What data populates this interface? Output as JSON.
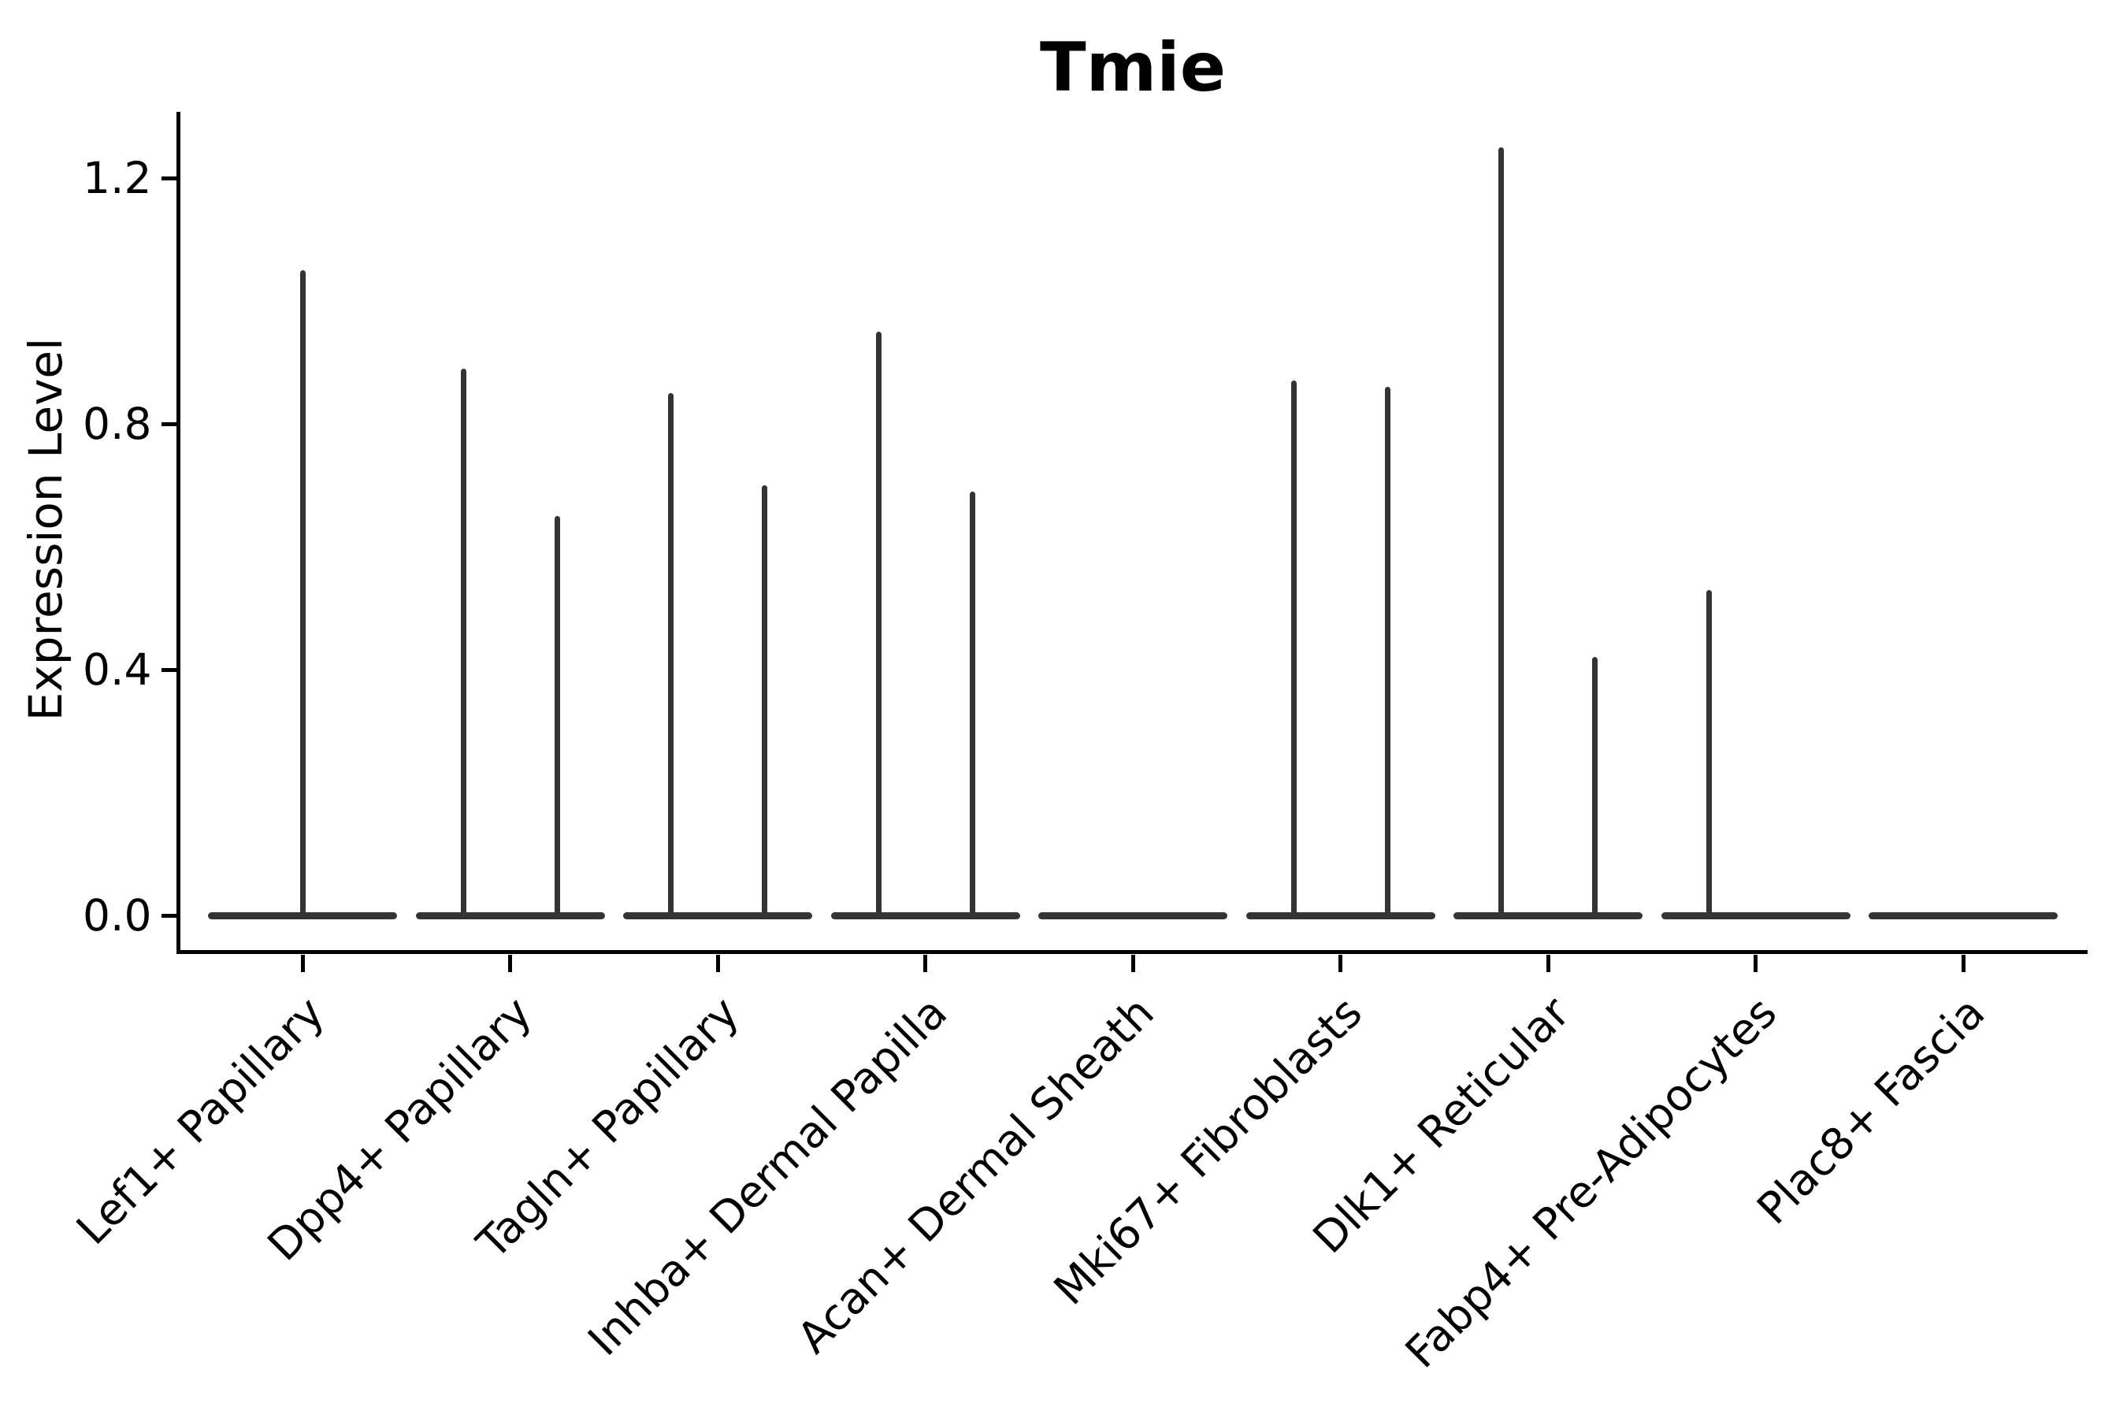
{
  "title": "Tmie",
  "y_axis": {
    "label": "Expression Level",
    "tick_labels": [
      "0.0",
      "0.4",
      "0.8",
      "1.2"
    ]
  },
  "chart_data": {
    "type": "violin",
    "title": "Tmie",
    "xlabel": "",
    "ylabel": "Expression Level",
    "ylim": [
      -0.06,
      1.31
    ],
    "yticks": [
      0.0,
      0.4,
      0.8,
      1.2
    ],
    "grid": false,
    "legend": "none",
    "categories": [
      "Lef1+ Papillary",
      "Dpp4+ Papillary",
      "Tagln+ Papillary",
      "Inhba+ Dermal Papilla",
      "Acan+ Dermal Sheath",
      "Mki67+ Fibroblasts",
      "Dlk1+ Reticular",
      "Fabp4+ Pre-Adipocytes",
      "Plac8+ Fascia"
    ],
    "description": "Violin plot of Tmie expression; every cell type shows a dense flat band at expression 0 with thin density spikes reaching the maximum expression values listed below.",
    "violins": [
      {
        "category": "Lef1+ Papillary",
        "baseline_value": 0,
        "spikes": [
          {
            "pos": "center",
            "max": 1.05
          }
        ]
      },
      {
        "category": "Dpp4+ Papillary",
        "baseline_value": 0,
        "spikes": [
          {
            "pos": "left",
            "max": 0.89
          },
          {
            "pos": "right",
            "max": 0.65
          }
        ]
      },
      {
        "category": "Tagln+ Papillary",
        "baseline_value": 0,
        "spikes": [
          {
            "pos": "left",
            "max": 0.85
          },
          {
            "pos": "right",
            "max": 0.7
          }
        ]
      },
      {
        "category": "Inhba+ Dermal Papilla",
        "baseline_value": 0,
        "spikes": [
          {
            "pos": "left",
            "max": 0.95
          },
          {
            "pos": "right",
            "max": 0.69
          }
        ]
      },
      {
        "category": "Acan+ Dermal Sheath",
        "baseline_value": 0,
        "spikes": []
      },
      {
        "category": "Mki67+ Fibroblasts",
        "baseline_value": 0,
        "spikes": [
          {
            "pos": "left",
            "max": 0.87
          },
          {
            "pos": "right",
            "max": 0.86
          }
        ]
      },
      {
        "category": "Dlk1+ Reticular",
        "baseline_value": 0,
        "spikes": [
          {
            "pos": "left",
            "max": 1.25
          },
          {
            "pos": "right",
            "max": 0.42
          }
        ]
      },
      {
        "category": "Fabp4+ Pre-Adipocytes",
        "baseline_value": 0,
        "spikes": [
          {
            "pos": "left",
            "max": 0.53
          }
        ]
      },
      {
        "category": "Plac8+ Fascia",
        "baseline_value": 0,
        "spikes": []
      }
    ],
    "colors": {
      "violin": "#343434",
      "axis": "#000000",
      "text": "#000000",
      "background": "#ffffff"
    }
  }
}
